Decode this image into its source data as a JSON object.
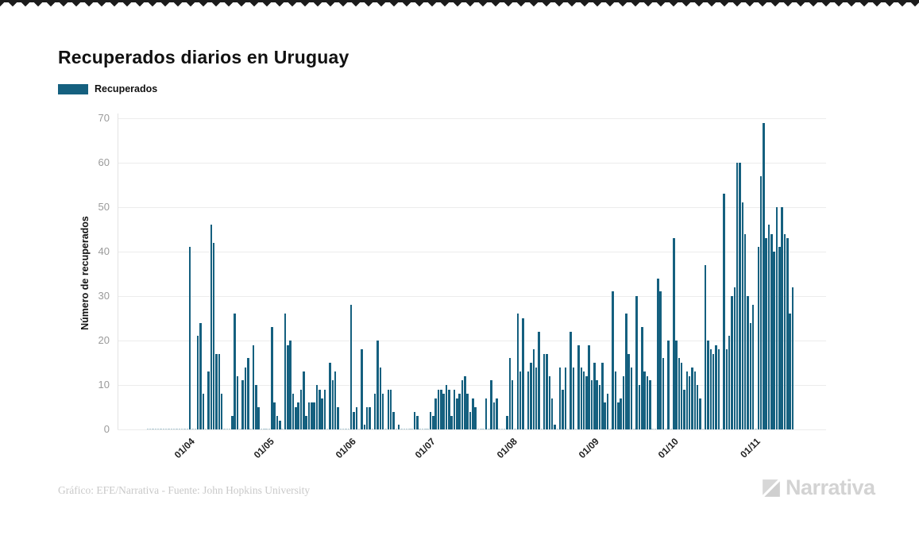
{
  "page": {
    "background": "#ffffff",
    "top_strip_color": "#1c1c1c"
  },
  "header": {
    "title": "Recuperados diarios en Uruguay"
  },
  "legend": {
    "label": "Recuperados",
    "swatch_color": "#15607F"
  },
  "chart_data": {
    "type": "bar",
    "title": "Recuperados diarios en Uruguay",
    "ylabel": "Número de recuperados",
    "xlabel": "",
    "legend_entries": [
      "Recuperados"
    ],
    "legend_position": "top-left",
    "grid": "horizontal",
    "bar_color": "#15607F",
    "ylim": [
      0,
      71
    ],
    "y_ticks": [
      0,
      10,
      20,
      30,
      40,
      50,
      60,
      70
    ],
    "x_tick_labels": [
      "01/04",
      "01/05",
      "01/06",
      "01/07",
      "01/08",
      "01/09",
      "01/10",
      "01/11"
    ],
    "x_tick_dates": [
      "2020-04-01",
      "2020-05-01",
      "2020-06-01",
      "2020-07-01",
      "2020-08-01",
      "2020-09-01",
      "2020-10-01",
      "2020-11-01"
    ],
    "frequency": "daily",
    "start_date": "2020-03-16",
    "values": [
      0,
      0,
      0,
      0,
      0,
      0,
      0,
      0,
      0,
      0,
      0,
      0,
      0,
      0,
      0,
      0,
      41,
      0,
      0,
      21,
      24,
      8,
      0,
      13,
      46,
      42,
      17,
      17,
      8,
      0,
      0,
      0,
      3,
      26,
      12,
      0,
      11,
      14,
      16,
      0,
      19,
      10,
      5,
      0,
      0,
      0,
      0,
      23,
      6,
      3,
      2,
      0,
      26,
      19,
      20,
      8,
      5,
      6,
      9,
      13,
      3,
      6,
      6,
      6,
      10,
      9,
      7,
      9,
      0,
      15,
      11,
      13,
      5,
      0,
      0,
      0,
      0,
      28,
      4,
      5,
      0,
      18,
      1,
      5,
      5,
      0,
      8,
      20,
      14,
      8,
      0,
      9,
      9,
      4,
      0,
      1,
      0,
      0,
      0,
      0,
      0,
      4,
      3,
      0,
      0,
      0,
      0,
      4,
      3,
      7,
      9,
      9,
      8,
      10,
      9,
      3,
      9,
      7,
      8,
      11,
      12,
      8,
      4,
      7,
      5,
      0,
      0,
      0,
      7,
      0,
      11,
      6,
      7,
      0,
      0,
      0,
      3,
      16,
      11,
      0,
      26,
      13,
      25,
      0,
      13,
      15,
      18,
      14,
      22,
      0,
      17,
      17,
      12,
      7,
      1,
      0,
      14,
      9,
      14,
      0,
      22,
      14,
      0,
      19,
      14,
      13,
      12,
      19,
      11,
      15,
      11,
      10,
      15,
      6,
      8,
      0,
      31,
      13,
      6,
      7,
      12,
      26,
      17,
      14,
      0,
      30,
      10,
      23,
      13,
      12,
      11,
      0,
      0,
      34,
      31,
      16,
      0,
      20,
      0,
      43,
      20,
      16,
      15,
      9,
      13,
      12,
      14,
      13,
      10,
      7,
      0,
      37,
      20,
      18,
      17,
      19,
      18,
      0,
      53,
      18,
      21,
      30,
      32,
      60,
      60,
      51,
      44,
      30,
      24,
      28,
      0,
      41,
      57,
      69,
      43,
      46,
      44,
      40,
      50,
      41,
      50,
      44,
      43,
      26,
      32
    ]
  },
  "footer": {
    "credit": "Gráfico: EFE/Narrativa - Fuente: John Hopkins University",
    "logo_text": "Narrativa"
  }
}
